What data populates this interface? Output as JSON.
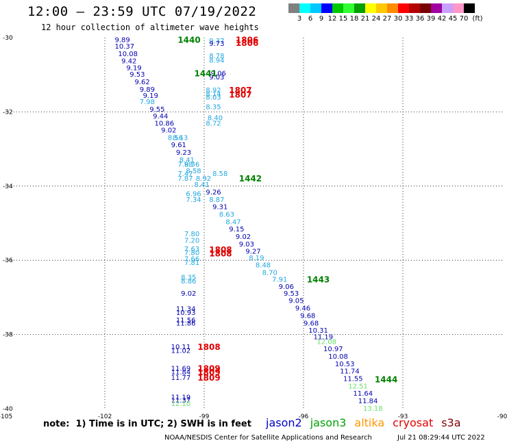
{
  "header": {
    "title": "12:00 – 23:59 UTC 07/19/2022",
    "subtitle": "12 hour collection of altimeter wave heights"
  },
  "legend": {
    "unit": "(ft)",
    "colors": [
      "#808080",
      "#00ffff",
      "#00c8ff",
      "#0000ff",
      "#00c800",
      "#32ff32",
      "#00a000",
      "#ffff00",
      "#ffc800",
      "#ff8c00",
      "#ff0000",
      "#b40000",
      "#780000",
      "#a000a0",
      "#c8a0ff",
      "#ff96c8",
      "#000000"
    ],
    "labels": [
      "3",
      "6",
      "9",
      "12",
      "15",
      "18",
      "21",
      "24",
      "27",
      "30",
      "33",
      "36",
      "39",
      "42",
      "45",
      "70"
    ]
  },
  "chart_data": {
    "type": "scatter",
    "x_ticks": [
      "-105",
      "-102",
      "-99",
      "-96",
      "-93",
      "-90"
    ],
    "y_ticks": [
      "-30",
      "-32",
      "-34",
      "-36",
      "-38",
      "-40"
    ],
    "xlim": [
      -105,
      -90
    ],
    "ylim": [
      -40,
      -30
    ],
    "grid": true,
    "observations": [
      {
        "lon": -101.7,
        "lat": -30.05,
        "text": "9.89",
        "color": "#0000b0"
      },
      {
        "lon": -101.7,
        "lat": -30.22,
        "text": "10.37",
        "color": "#0000b0"
      },
      {
        "lon": -101.6,
        "lat": -30.42,
        "text": "10.08",
        "color": "#0000b0"
      },
      {
        "lon": -101.5,
        "lat": -30.62,
        "text": "9.42",
        "color": "#0000b0"
      },
      {
        "lon": -101.35,
        "lat": -30.8,
        "text": "9.19",
        "color": "#0000b0"
      },
      {
        "lon": -101.25,
        "lat": -30.98,
        "text": "9.53",
        "color": "#0000b0"
      },
      {
        "lon": -101.1,
        "lat": -31.18,
        "text": "9.62",
        "color": "#0000b0"
      },
      {
        "lon": -100.95,
        "lat": -31.38,
        "text": "9.89",
        "color": "#0000b0"
      },
      {
        "lon": -100.85,
        "lat": -31.55,
        "text": "9.19",
        "color": "#0000b0"
      },
      {
        "lon": -100.95,
        "lat": -31.72,
        "text": "7.98",
        "color": "#20a8e0"
      },
      {
        "lon": -100.65,
        "lat": -31.92,
        "text": "9.55",
        "color": "#0000b0"
      },
      {
        "lon": -100.55,
        "lat": -32.1,
        "text": "9.44",
        "color": "#0000b0"
      },
      {
        "lon": -100.5,
        "lat": -32.3,
        "text": "10.86",
        "color": "#0000b0"
      },
      {
        "lon": -100.3,
        "lat": -32.48,
        "text": "9.02",
        "color": "#0000b0"
      },
      {
        "lon": -100.1,
        "lat": -32.68,
        "text": "8.56",
        "color": "#20a8e0"
      },
      {
        "lon": -99.95,
        "lat": -32.68,
        "text": "8.13",
        "color": "#20a8e0"
      },
      {
        "lon": -100.0,
        "lat": -32.88,
        "text": "9.61",
        "color": "#0000b0"
      },
      {
        "lon": -99.85,
        "lat": -33.08,
        "text": "9.23",
        "color": "#0000b0"
      },
      {
        "lon": -99.75,
        "lat": -33.28,
        "text": "8.41",
        "color": "#20a8e0"
      },
      {
        "lon": -99.8,
        "lat": -33.4,
        "text": "7.98",
        "color": "#20a8e0"
      },
      {
        "lon": -99.6,
        "lat": -33.4,
        "text": "8.36",
        "color": "#20a8e0"
      },
      {
        "lon": -99.55,
        "lat": -33.58,
        "text": "8.58",
        "color": "#20a8e0"
      },
      {
        "lon": -99.8,
        "lat": -33.65,
        "text": "7.47",
        "color": "#20a8e0"
      },
      {
        "lon": -99.8,
        "lat": -33.78,
        "text": "7.87",
        "color": "#20a8e0"
      },
      {
        "lon": -99.25,
        "lat": -33.78,
        "text": "8.92",
        "color": "#20a8e0"
      },
      {
        "lon": -99.3,
        "lat": -33.95,
        "text": "8.41",
        "color": "#20a8e0"
      },
      {
        "lon": -98.95,
        "lat": -34.15,
        "text": "9.26",
        "color": "#0000b0"
      },
      {
        "lon": -98.85,
        "lat": -34.35,
        "text": "8.87",
        "color": "#20a8e0"
      },
      {
        "lon": -98.75,
        "lat": -34.55,
        "text": "9.31",
        "color": "#0000b0"
      },
      {
        "lon": -98.55,
        "lat": -34.75,
        "text": "8.63",
        "color": "#20a8e0"
      },
      {
        "lon": -98.35,
        "lat": -34.95,
        "text": "8.47",
        "color": "#20a8e0"
      },
      {
        "lon": -98.25,
        "lat": -35.15,
        "text": "9.15",
        "color": "#0000b0"
      },
      {
        "lon": -98.05,
        "lat": -35.35,
        "text": "9.02",
        "color": "#0000b0"
      },
      {
        "lon": -97.95,
        "lat": -35.55,
        "text": "9.03",
        "color": "#0000b0"
      },
      {
        "lon": -97.75,
        "lat": -35.75,
        "text": "9.27",
        "color": "#0000b0"
      },
      {
        "lon": -97.65,
        "lat": -35.92,
        "text": "8.19",
        "color": "#20a8e0"
      },
      {
        "lon": -97.45,
        "lat": -36.12,
        "text": "8.48",
        "color": "#20a8e0"
      },
      {
        "lon": -97.25,
        "lat": -36.32,
        "text": "8.70",
        "color": "#20a8e0"
      },
      {
        "lon": -96.95,
        "lat": -36.5,
        "text": "7.91",
        "color": "#20a8e0"
      },
      {
        "lon": -96.75,
        "lat": -36.7,
        "text": "9.06",
        "color": "#0000b0"
      },
      {
        "lon": -96.6,
        "lat": -36.88,
        "text": "9.53",
        "color": "#0000b0"
      },
      {
        "lon": -96.45,
        "lat": -37.08,
        "text": "9.05",
        "color": "#0000b0"
      },
      {
        "lon": -96.25,
        "lat": -37.28,
        "text": "9.46",
        "color": "#0000b0"
      },
      {
        "lon": -96.1,
        "lat": -37.48,
        "text": "9.68",
        "color": "#0000b0"
      },
      {
        "lon": -96.0,
        "lat": -37.68,
        "text": "9.68",
        "color": "#0000b0"
      },
      {
        "lon": -95.85,
        "lat": -37.88,
        "text": "10.31",
        "color": "#0000b0"
      },
      {
        "lon": -95.7,
        "lat": -38.05,
        "text": "11.19",
        "color": "#0000b0"
      },
      {
        "lon": -95.6,
        "lat": -38.18,
        "text": "12.08",
        "color": "#66e066"
      },
      {
        "lon": -95.4,
        "lat": -38.38,
        "text": "10.97",
        "color": "#0000b0"
      },
      {
        "lon": -95.25,
        "lat": -38.58,
        "text": "10.08",
        "color": "#0000b0"
      },
      {
        "lon": -95.05,
        "lat": -38.78,
        "text": "10.53",
        "color": "#0000b0"
      },
      {
        "lon": -94.9,
        "lat": -38.98,
        "text": "11.74",
        "color": "#0000b0"
      },
      {
        "lon": -94.8,
        "lat": -39.18,
        "text": "11.55",
        "color": "#0000b0"
      },
      {
        "lon": -94.65,
        "lat": -39.38,
        "text": "12.51",
        "color": "#66e066"
      },
      {
        "lon": -94.5,
        "lat": -39.58,
        "text": "11.64",
        "color": "#0000b0"
      },
      {
        "lon": -94.35,
        "lat": -39.78,
        "text": "11.84",
        "color": "#0000b0"
      },
      {
        "lon": -94.2,
        "lat": -39.98,
        "text": "13.18",
        "color": "#66e066"
      },
      {
        "lon": -98.85,
        "lat": -30.07,
        "text": "9.37",
        "color": "#20a8e0"
      },
      {
        "lon": -98.85,
        "lat": -30.15,
        "text": "9.73",
        "color": "#0000b0"
      },
      {
        "lon": -98.85,
        "lat": -30.48,
        "text": "8.78",
        "color": "#20a8e0"
      },
      {
        "lon": -98.85,
        "lat": -30.6,
        "text": "8.94",
        "color": "#20a8e0"
      },
      {
        "lon": -98.8,
        "lat": -30.95,
        "text": "9.06",
        "color": "#0000b0"
      },
      {
        "lon": -98.85,
        "lat": -31.05,
        "text": "9.03",
        "color": "#0000b0"
      },
      {
        "lon": -98.95,
        "lat": -31.4,
        "text": "8.92",
        "color": "#20a8e0"
      },
      {
        "lon": -98.95,
        "lat": -31.5,
        "text": "8.14",
        "color": "#20a8e0"
      },
      {
        "lon": -98.95,
        "lat": -31.6,
        "text": "8.03",
        "color": "#20a8e0"
      },
      {
        "lon": -98.95,
        "lat": -31.85,
        "text": "8.35",
        "color": "#20a8e0"
      },
      {
        "lon": -98.9,
        "lat": -32.15,
        "text": "8.40",
        "color": "#20a8e0"
      },
      {
        "lon": -98.95,
        "lat": -32.3,
        "text": "8.72",
        "color": "#20a8e0"
      },
      {
        "lon": -98.75,
        "lat": -33.65,
        "text": "8.58",
        "color": "#20a8e0"
      },
      {
        "lon": -99.55,
        "lat": -34.2,
        "text": "6.96",
        "color": "#20a8e0"
      },
      {
        "lon": -99.55,
        "lat": -34.35,
        "text": "7.34",
        "color": "#20a8e0"
      },
      {
        "lon": -99.6,
        "lat": -35.28,
        "text": "7.80",
        "color": "#20a8e0"
      },
      {
        "lon": -99.6,
        "lat": -35.45,
        "text": "7.20",
        "color": "#20a8e0"
      },
      {
        "lon": -99.6,
        "lat": -35.68,
        "text": "7.63",
        "color": "#20a8e0"
      },
      {
        "lon": -99.6,
        "lat": -35.78,
        "text": "7.80",
        "color": "#20a8e0"
      },
      {
        "lon": -99.6,
        "lat": -35.95,
        "text": "7.66",
        "color": "#20a8e0"
      },
      {
        "lon": -99.6,
        "lat": -36.05,
        "text": "7.81",
        "color": "#20a8e0"
      },
      {
        "lon": -99.7,
        "lat": -36.45,
        "text": "8.35",
        "color": "#20a8e0"
      },
      {
        "lon": -99.7,
        "lat": -36.55,
        "text": "8.86",
        "color": "#20a8e0"
      },
      {
        "lon": -99.7,
        "lat": -36.88,
        "text": "9.02",
        "color": "#0000b0"
      },
      {
        "lon": -99.85,
        "lat": -37.3,
        "text": "11.34",
        "color": "#0000b0"
      },
      {
        "lon": -99.85,
        "lat": -37.4,
        "text": "10.93",
        "color": "#0000b0"
      },
      {
        "lon": -99.85,
        "lat": -37.6,
        "text": "11.56",
        "color": "#0000b0"
      },
      {
        "lon": -99.85,
        "lat": -37.68,
        "text": "11.86",
        "color": "#0000b0"
      },
      {
        "lon": -100.0,
        "lat": -38.32,
        "text": "10.11",
        "color": "#0000b0"
      },
      {
        "lon": -100.0,
        "lat": -38.42,
        "text": "11.02",
        "color": "#0000b0"
      },
      {
        "lon": -100.0,
        "lat": -38.9,
        "text": "11.69",
        "color": "#0000b0"
      },
      {
        "lon": -100.0,
        "lat": -39.0,
        "text": "11.84",
        "color": "#0000b0"
      },
      {
        "lon": -100.0,
        "lat": -39.15,
        "text": "11.77",
        "color": "#0000b0"
      },
      {
        "lon": -100.0,
        "lat": -39.68,
        "text": "11.19",
        "color": "#0000b0"
      },
      {
        "lon": -100.0,
        "lat": -39.76,
        "text": "11.37",
        "color": "#0000b0"
      },
      {
        "lon": -100.0,
        "lat": -39.85,
        "text": "12.10",
        "color": "#66e066"
      }
    ],
    "pass_times": [
      {
        "lon": -99.8,
        "lat": -30.05,
        "text": "1440",
        "color": "#008000"
      },
      {
        "lon": -99.3,
        "lat": -30.95,
        "text": "1441",
        "color": "#008000"
      },
      {
        "lon": -97.95,
        "lat": -33.78,
        "text": "1442",
        "color": "#008000"
      },
      {
        "lon": -95.9,
        "lat": -36.5,
        "text": "1443",
        "color": "#008000"
      },
      {
        "lon": -93.85,
        "lat": -39.2,
        "text": "1444",
        "color": "#008000"
      },
      {
        "lon": -98.05,
        "lat": -30.05,
        "text": "1806",
        "color": "#e00000"
      },
      {
        "lon": -98.05,
        "lat": -30.13,
        "text": "1806",
        "color": "#e00000"
      },
      {
        "lon": -98.25,
        "lat": -31.4,
        "text": "1807",
        "color": "#e00000"
      },
      {
        "lon": -98.25,
        "lat": -31.52,
        "text": "1807",
        "color": "#e00000"
      },
      {
        "lon": -98.85,
        "lat": -35.7,
        "text": "1808",
        "color": "#e00000"
      },
      {
        "lon": -98.85,
        "lat": -35.8,
        "text": "1808",
        "color": "#e00000"
      },
      {
        "lon": -99.2,
        "lat": -38.32,
        "text": "1808",
        "color": "#e00000"
      },
      {
        "lon": -99.2,
        "lat": -38.9,
        "text": "1809",
        "color": "#e00000"
      },
      {
        "lon": -99.2,
        "lat": -39.0,
        "text": "1809",
        "color": "#e00000"
      },
      {
        "lon": -99.2,
        "lat": -39.15,
        "text": "1809",
        "color": "#e00000"
      }
    ]
  },
  "footer": {
    "note": "note:  1) Time is in UTC; 2) SWH is in feet",
    "satellites": [
      {
        "name": "jason2",
        "color": "#0000c8"
      },
      {
        "name": "jason3",
        "color": "#00a000"
      },
      {
        "name": "altika",
        "color": "#ff9600"
      },
      {
        "name": "cryosat",
        "color": "#e00000"
      },
      {
        "name": "s3a",
        "color": "#800000"
      }
    ],
    "credit": "NOAA/NESDIS Center for Satellite Applications and Research",
    "timestamp": "Jul 21 08:29:44 UTC 2022"
  }
}
